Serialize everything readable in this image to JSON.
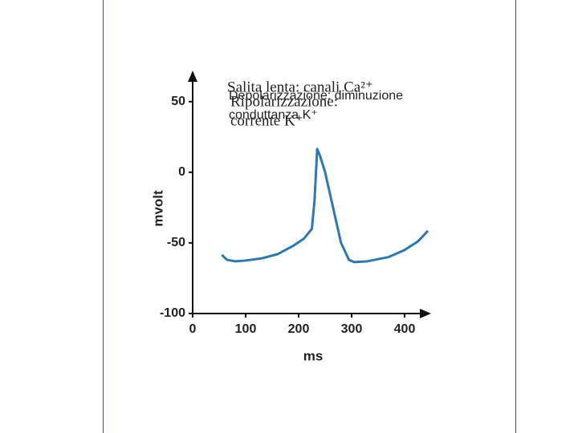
{
  "chart_data": {
    "type": "line",
    "x_label": "ms",
    "y_label": "mvolt",
    "x": [
      55,
      65,
      80,
      100,
      130,
      160,
      190,
      210,
      225,
      230,
      235,
      240,
      250,
      265,
      280,
      295,
      305,
      330,
      370,
      400,
      425,
      444
    ],
    "series": [
      {
        "color": "#2a78b4",
        "values": [
          -58.5,
          -62,
          -63,
          -62.5,
          -61,
          -58,
          -52,
          -47,
          -40,
          -20,
          16.5,
          12,
          0,
          -25,
          -50,
          -62,
          -63.6,
          -63,
          -60,
          -55,
          -49,
          -41.5
        ]
      }
    ],
    "xlim": [
      0,
      450
    ],
    "xticks": [
      0,
      100,
      200,
      300,
      400
    ],
    "ylim": [
      -100,
      72
    ],
    "yticks": [
      -100,
      -50,
      0,
      50
    ],
    "annotations": [
      {
        "lines": [
          "Salita lenta: canali Ca²⁺"
        ],
        "style": "serif"
      },
      {
        "lines": [
          "Depolarizzazione: diminuzione",
          "conduttanza K⁺"
        ],
        "style": "sans"
      },
      {
        "lines": [
          "Ripolarizzazione:",
          "corrente K⁺"
        ],
        "style": "serif"
      }
    ]
  }
}
